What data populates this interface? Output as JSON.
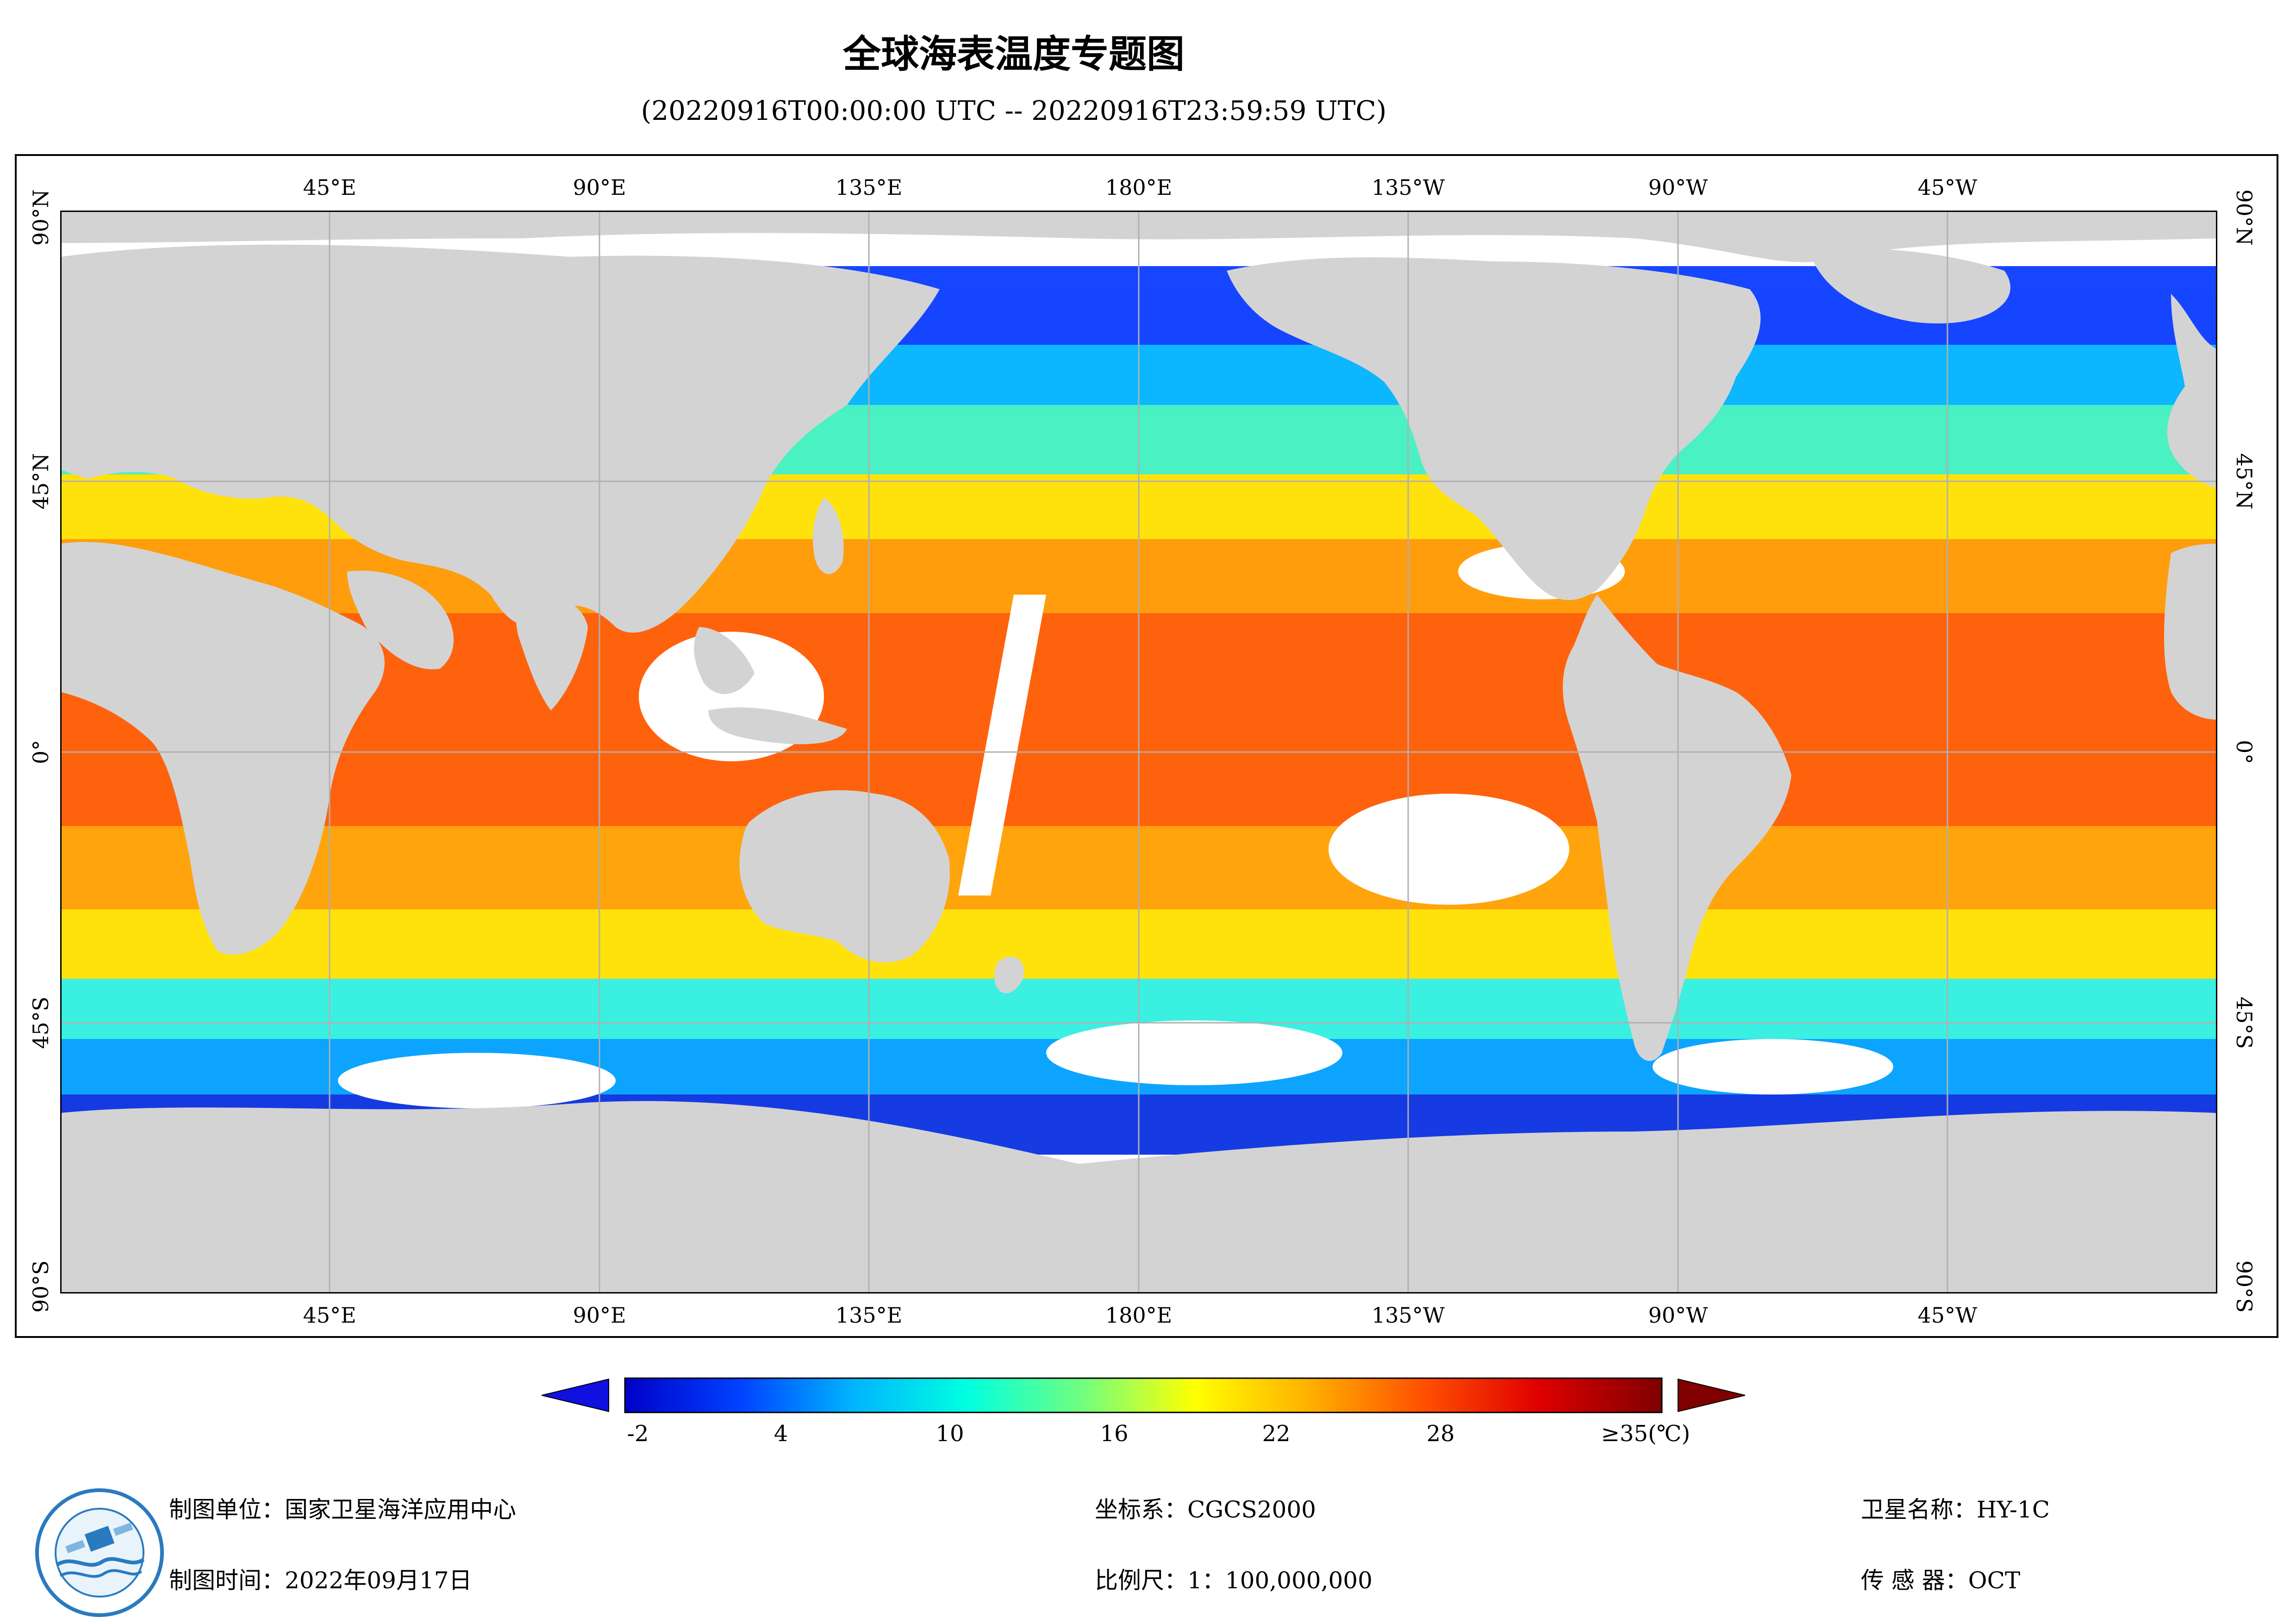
{
  "title": "全球海表温度专题图",
  "subtitle": "(20220916T00:00:00 UTC -- 20220916T23:59:59 UTC)",
  "map": {
    "projection": "equirectangular",
    "lon_range": "0°E–360°E (centered 180°)",
    "lat_range": "90°S–90°N",
    "land_color": "#d3d3d3",
    "grid_color": "#b0b0b0",
    "no_data_color": "#ffffff"
  },
  "lon_ticks": [
    "45°E",
    "90°E",
    "135°E",
    "180°E",
    "135°W",
    "90°W",
    "45°W"
  ],
  "lat_ticks": [
    "90°N",
    "45°N",
    "0°",
    "45°S",
    "90°S"
  ],
  "colorbar": {
    "min_label": "-2",
    "labels": [
      "-2",
      "4",
      "10",
      "16",
      "22",
      "28",
      "≥35(℃)"
    ],
    "stops": [
      "#0000c8",
      "#0040ff",
      "#00b4ff",
      "#00ffe0",
      "#70ff80",
      "#ffff00",
      "#ffb000",
      "#ff5000",
      "#e00000",
      "#800000"
    ],
    "extend": "both"
  },
  "info": {
    "unit_label": "制图单位：国家卫星海洋应用中心",
    "time_label": "制图时间：2022年09月17日",
    "crs_label": "坐标系：CGCS2000",
    "scale_label": "比例尺：1：100,000,000",
    "satellite_label": "卫星名称：HY-1C",
    "sensor_label": "传 感 器：OCT"
  }
}
